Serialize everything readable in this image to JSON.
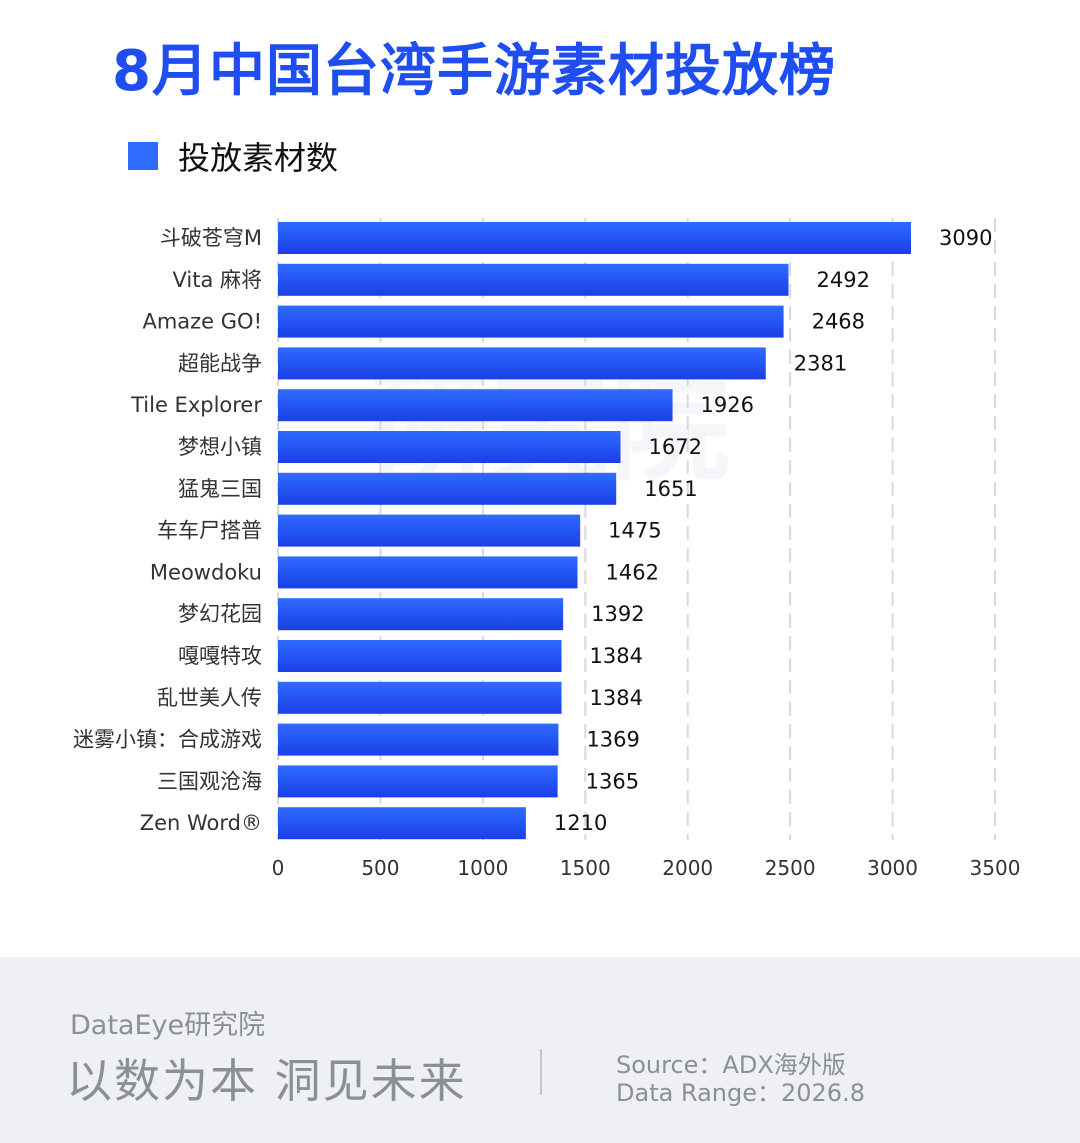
{
  "title": "8月中国台湾手游素材投放榜",
  "legend": {
    "label": "投放素材数",
    "color": "#2f6bff"
  },
  "watermark": "研究院",
  "chart_data": {
    "type": "bar",
    "orientation": "horizontal",
    "categories": [
      "斗破苍穹M",
      "Vita 麻将",
      "Amaze GO!",
      "超能战争",
      "Tile Explorer",
      "梦想小镇",
      "猛鬼三国",
      "车车尸搭普",
      "Meowdoku",
      "梦幻花园",
      "嘎嘎特攻",
      "乱世美人传",
      "迷雾小镇：合成游戏",
      "三国观沧海",
      "Zen Word®"
    ],
    "series": [
      {
        "name": "投放素材数",
        "values": [
          3090,
          2492,
          2468,
          2381,
          1926,
          1672,
          1651,
          1475,
          1462,
          1392,
          1384,
          1384,
          1369,
          1365,
          1210
        ]
      }
    ],
    "xlim": [
      0,
      3500
    ],
    "xticks": [
      0,
      500,
      1000,
      1500,
      2000,
      2500,
      3000,
      3500
    ],
    "grid": true,
    "legend_position": "top-left",
    "bar_color_top": "#2f6bff",
    "bar_color_bottom": "#1a3fe6"
  },
  "footer": {
    "brand": "DataEye研究院",
    "slogan": "以数为本 洞见未来",
    "source": "Source：ADX海外版",
    "range": "Data Range：2026.8"
  }
}
